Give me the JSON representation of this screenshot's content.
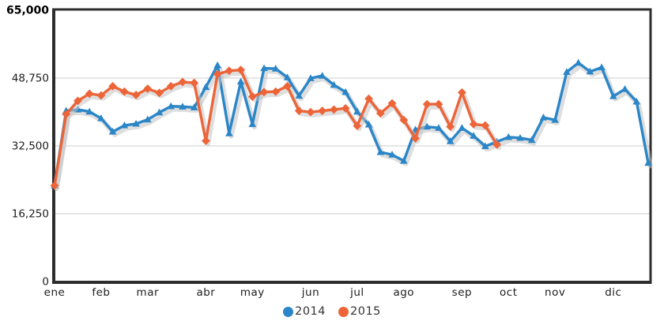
{
  "page": {
    "background": "#ffffff"
  },
  "chart_data": {
    "type": "line",
    "title": "",
    "xlabel": "",
    "ylabel": "",
    "x_unit": "weekly points (52 weeks)",
    "ylim": [
      0,
      65000
    ],
    "grid": "horizontal-only",
    "legend_position": "bottom-center",
    "axis_color": "#2d2d2d",
    "grid_color": "#cccccc",
    "shadow_color": "#c2c2c2",
    "text_color": "#1c1c1c",
    "y_ticks": [
      {
        "value": 0,
        "label": "0"
      },
      {
        "value": 16250,
        "label": "16,250"
      },
      {
        "value": 32500,
        "label": "32,500"
      },
      {
        "value": 48750,
        "label": "48,750"
      },
      {
        "value": 65000,
        "label": "65,000"
      }
    ],
    "months": [
      {
        "label": "ene",
        "week": 0
      },
      {
        "label": "feb",
        "week": 4
      },
      {
        "label": "mar",
        "week": 8
      },
      {
        "label": "abr",
        "week": 13
      },
      {
        "label": "may",
        "week": 17
      },
      {
        "label": "jun",
        "week": 22
      },
      {
        "label": "jul",
        "week": 26
      },
      {
        "label": "ago",
        "week": 30
      },
      {
        "label": "sep",
        "week": 35
      },
      {
        "label": "oct",
        "week": 39
      },
      {
        "label": "nov",
        "week": 43
      },
      {
        "label": "dic",
        "week": 48
      }
    ],
    "series": [
      {
        "name": "2014",
        "color": "#2b86c8",
        "marker": "triangle",
        "values": [
          23000,
          40900,
          41200,
          40700,
          39100,
          35900,
          37400,
          37800,
          38800,
          40500,
          42000,
          41900,
          41700,
          46600,
          51800,
          35500,
          47900,
          37700,
          51100,
          51000,
          48900,
          44500,
          48700,
          49300,
          47100,
          45400,
          40700,
          37600,
          31000,
          30400,
          28900,
          36400,
          37100,
          36800,
          33600,
          36800,
          34900,
          32400,
          33500,
          34600,
          34400,
          33900,
          39300,
          38700,
          50200,
          52400,
          50300,
          51300,
          44400,
          46100,
          43100,
          28400
        ]
      },
      {
        "name": "2015",
        "color": "#ec6438",
        "marker": "diamond",
        "values": [
          23000,
          40100,
          43300,
          45000,
          44600,
          46800,
          45500,
          44700,
          46200,
          45200,
          46800,
          47800,
          47600,
          33700,
          49700,
          50500,
          50700,
          44300,
          45400,
          45500,
          46800,
          40900,
          40600,
          40900,
          41200,
          41500,
          37300,
          43800,
          40300,
          42700,
          38700,
          34300,
          42500,
          42500,
          37100,
          45300,
          37700,
          37400,
          32800
        ]
      }
    ]
  }
}
